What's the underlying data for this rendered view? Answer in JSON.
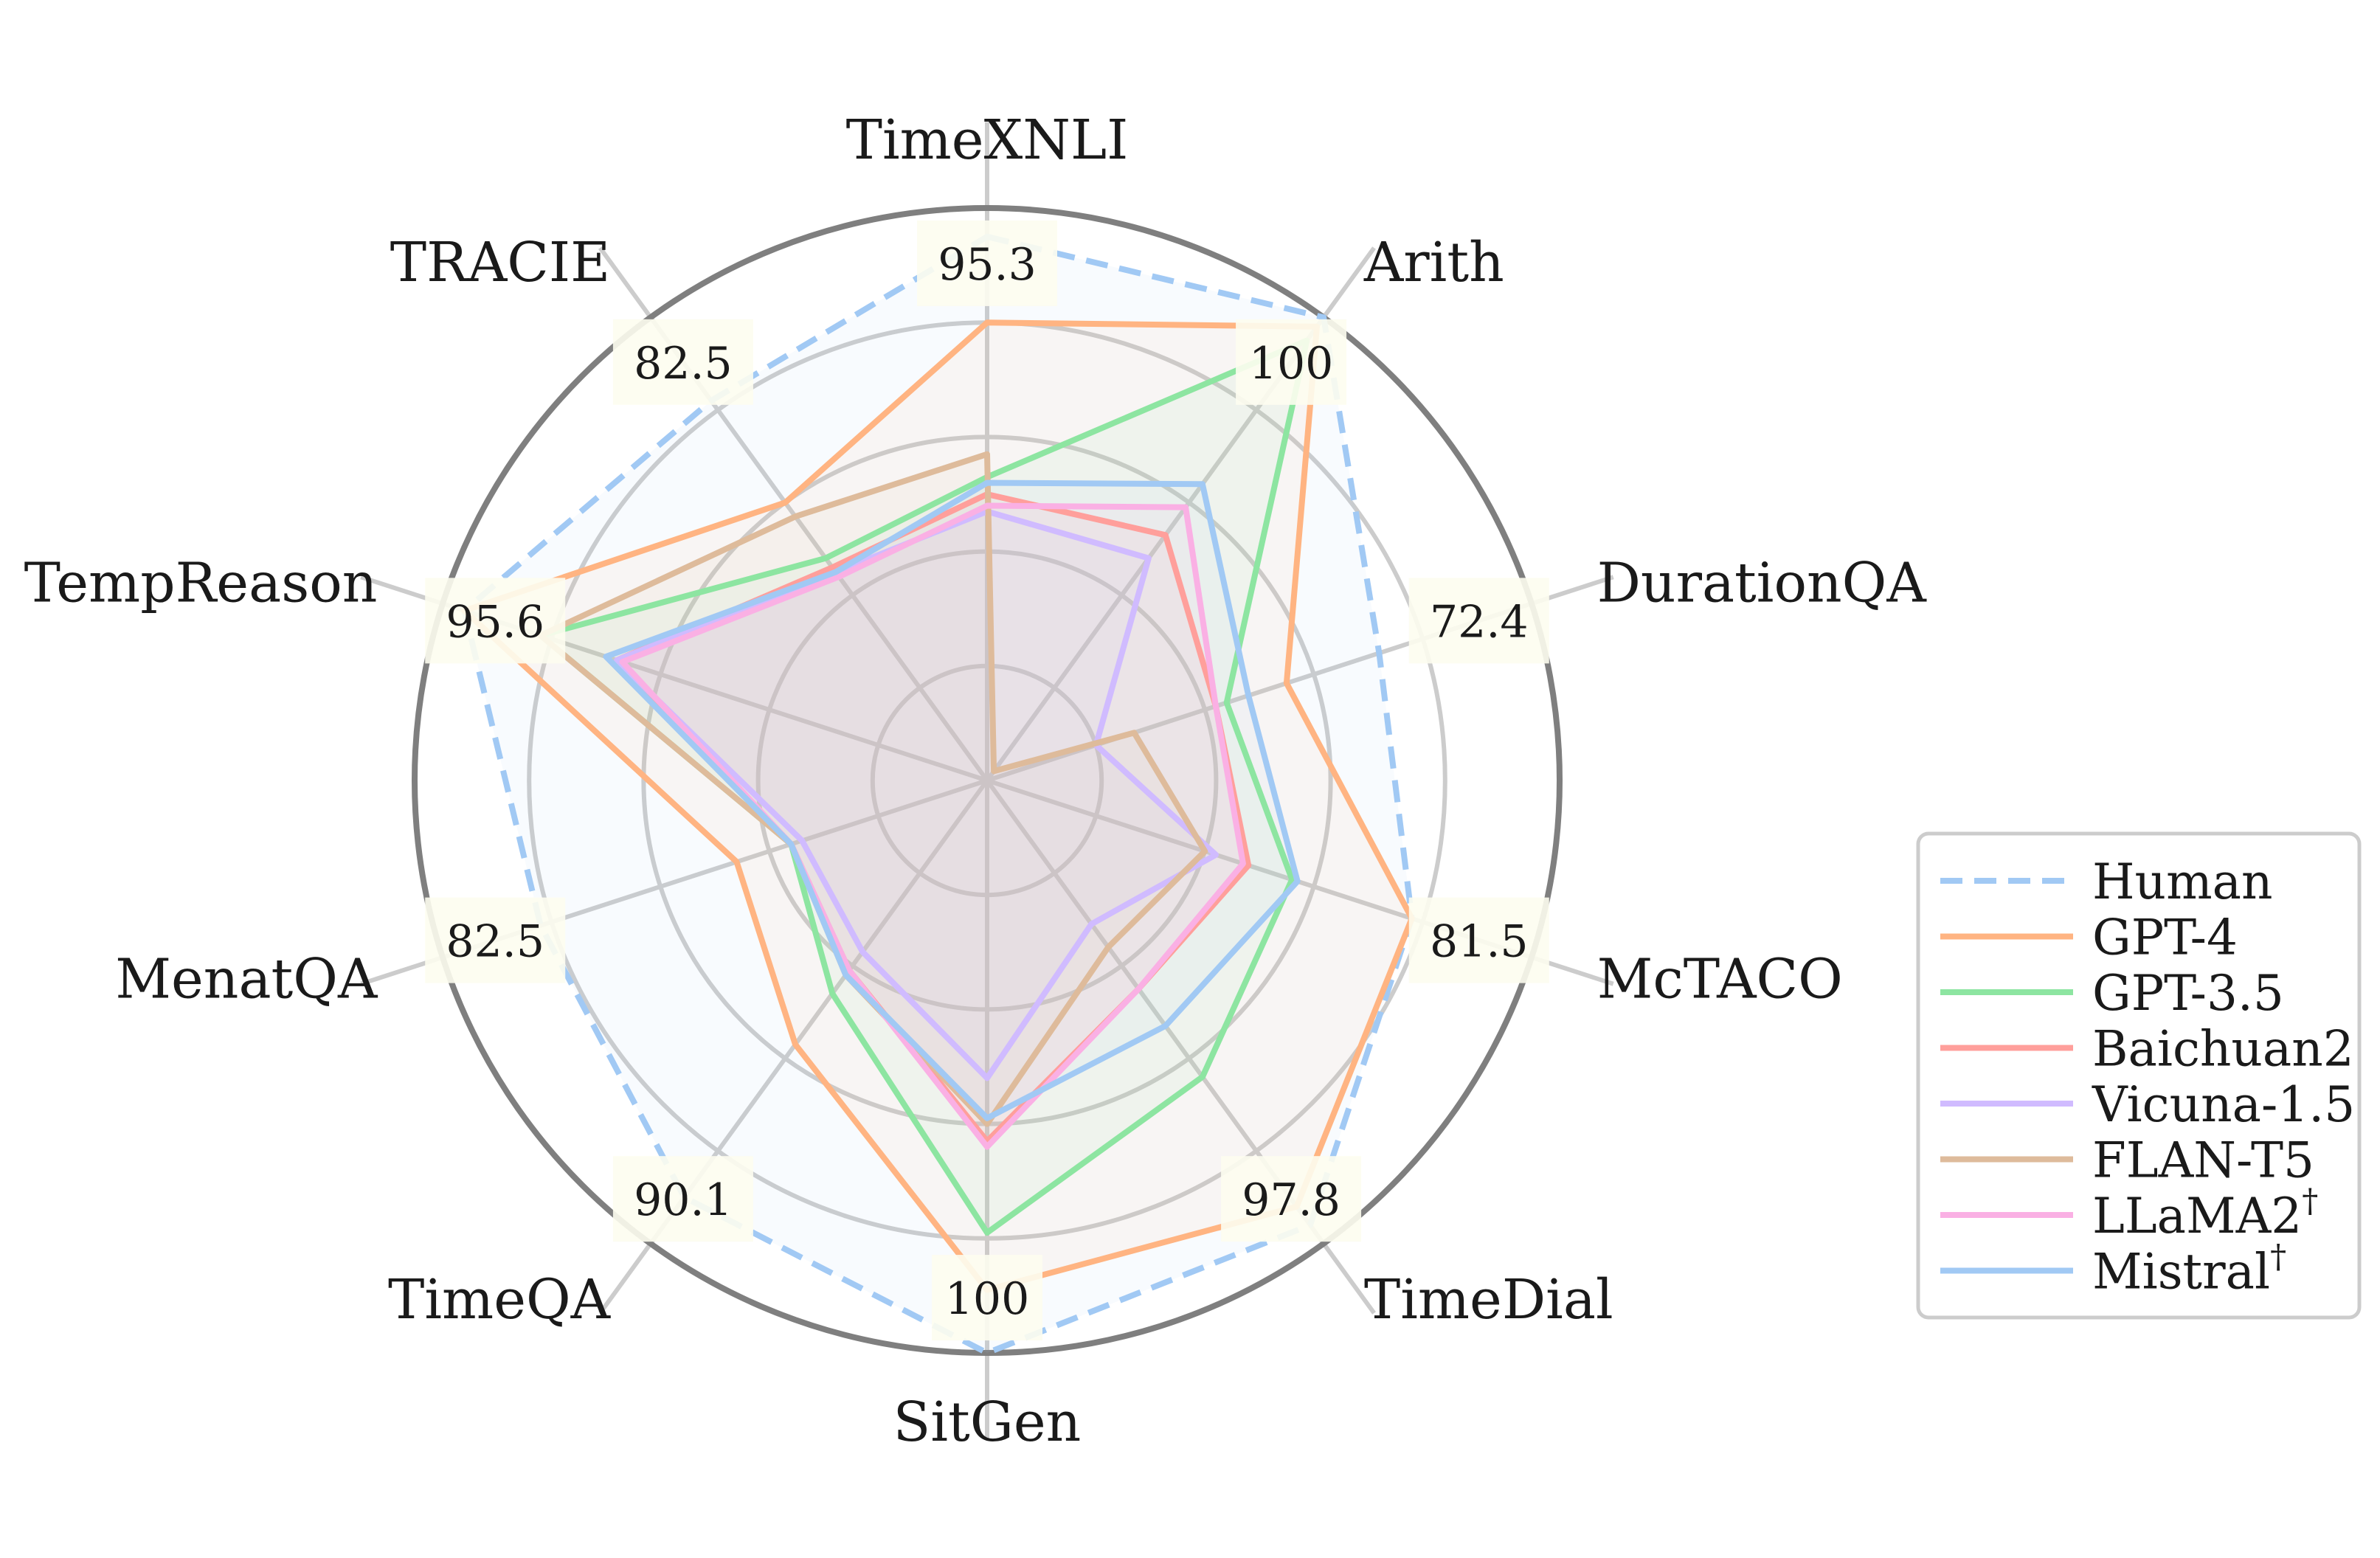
{
  "chart_data": {
    "type": "radar",
    "title": "",
    "axes": [
      "TimeXNLI",
      "Arith",
      "DurationQA",
      "McTACO",
      "TimeDial",
      "SitGen",
      "TimeQA",
      "MenatQA",
      "TempReason",
      "TRACIE"
    ],
    "axis_max_labels": [
      "95.3",
      "100",
      "72.4",
      "81.5",
      "97.8",
      "100",
      "90.1",
      "82.5",
      "95.6",
      "82.5"
    ],
    "rlim": [
      0,
      1
    ],
    "grid_rings": [
      0.2,
      0.4,
      0.6,
      0.8,
      1.0
    ],
    "legend_position": "bottom-right",
    "series": [
      {
        "name": "Human",
        "dagger": false,
        "color": "#a1c9f4",
        "dashed": true,
        "fill": "#a1c9f4",
        "values": [
          0.95,
          1.0,
          0.72,
          0.78,
          0.96,
          1.0,
          0.9,
          0.82,
          0.96,
          0.82
        ]
      },
      {
        "name": "GPT-4",
        "dagger": false,
        "color": "#ffb482",
        "dashed": false,
        "fill": "#ffb482",
        "values": [
          0.8,
          0.98,
          0.55,
          0.78,
          0.92,
          0.89,
          0.57,
          0.46,
          0.96,
          0.6
        ]
      },
      {
        "name": "GPT-3.5",
        "dagger": false,
        "color": "#8de5a1",
        "dashed": false,
        "fill": "#8de5a1",
        "values": [
          0.53,
          0.95,
          0.44,
          0.56,
          0.64,
          0.79,
          0.46,
          0.36,
          0.82,
          0.48
        ]
      },
      {
        "name": "Baichuan2",
        "dagger": false,
        "color": "#ff9f9b",
        "dashed": false,
        "fill": "#ff9f9b",
        "values": [
          0.5,
          0.53,
          0.42,
          0.48,
          0.45,
          0.63,
          0.41,
          0.36,
          0.68,
          0.46
        ]
      },
      {
        "name": "Vicuna-1.5",
        "dagger": false,
        "color": "#d0bbff",
        "dashed": false,
        "fill": "#d0bbff",
        "values": [
          0.47,
          0.48,
          0.2,
          0.42,
          0.31,
          0.52,
          0.37,
          0.34,
          0.68,
          0.45
        ]
      },
      {
        "name": "FLAN-T5",
        "dagger": false,
        "color": "#debb9b",
        "dashed": false,
        "fill": "#debb9b",
        "values": [
          0.57,
          0.02,
          0.27,
          0.4,
          0.36,
          0.6,
          0.42,
          0.36,
          0.82,
          0.57
        ]
      },
      {
        "name": "LLaMA2",
        "dagger": true,
        "color": "#fab0e4",
        "dashed": false,
        "fill": "#fab0e4",
        "values": [
          0.48,
          0.59,
          0.42,
          0.47,
          0.45,
          0.64,
          0.41,
          0.36,
          0.67,
          0.44
        ]
      },
      {
        "name": "Mistral",
        "dagger": true,
        "color": "#a1c9f4",
        "dashed": false,
        "fill": "#a1c9f4",
        "values": [
          0.52,
          0.64,
          0.48,
          0.57,
          0.53,
          0.59,
          0.42,
          0.36,
          0.7,
          0.45
        ]
      }
    ]
  }
}
